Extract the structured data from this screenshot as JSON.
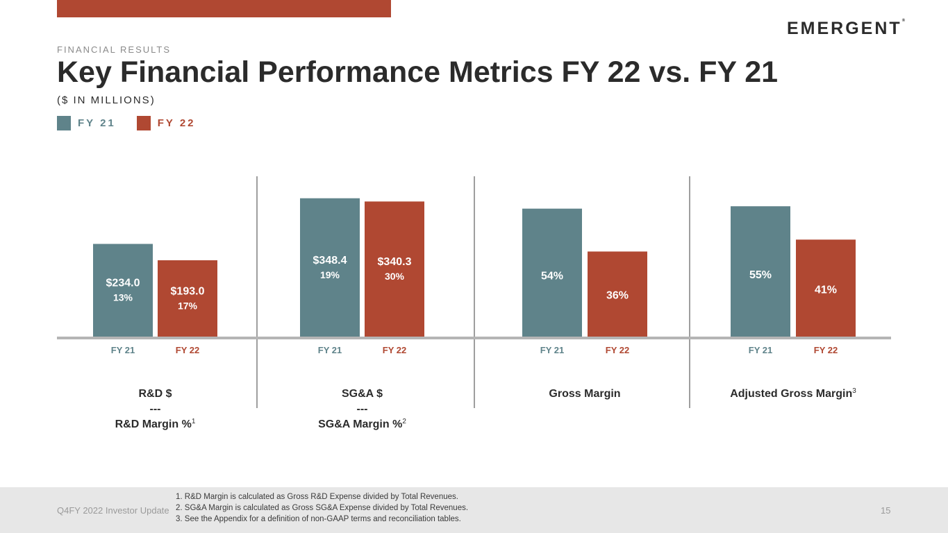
{
  "header": {
    "logo": "EMERGENT",
    "logo_mark": "®",
    "eyebrow": "FINANCIAL RESULTS",
    "title": "Key Financial Performance Metrics FY 22 vs. FY 21",
    "subtitle": "($ IN MILLIONS)"
  },
  "colors": {
    "fy21": "#5f838a",
    "fy22": "#b04832",
    "accent_bar": "#b04832",
    "axis": "#b5b5b5",
    "divider": "#9e9e9e"
  },
  "legend": [
    {
      "label": "FY 21",
      "color": "#5f838a"
    },
    {
      "label": "FY 22",
      "color": "#b04832"
    }
  ],
  "chart_data": {
    "type": "bar",
    "series_names": [
      "FY 21",
      "FY 22"
    ],
    "groups": [
      {
        "id": "rd",
        "label": [
          "R&D $",
          "---",
          "R&D Margin %"
        ],
        "sup": "1",
        "categories": [
          "FY 21",
          "FY 22"
        ],
        "values": [
          234.0,
          193.0
        ],
        "value_labels": [
          "$234.0",
          "$193.0"
        ],
        "sub_labels": [
          "13%",
          "17%"
        ],
        "ymax": 400
      },
      {
        "id": "sga",
        "label": [
          "SG&A $",
          "---",
          "SG&A Margin %"
        ],
        "sup": "2",
        "categories": [
          "FY 21",
          "FY 22"
        ],
        "values": [
          348.4,
          340.3
        ],
        "value_labels": [
          "$348.4",
          "$340.3"
        ],
        "sub_labels": [
          "19%",
          "30%"
        ],
        "ymax": 400
      },
      {
        "id": "gm",
        "label": [
          "Gross Margin"
        ],
        "sup": "",
        "categories": [
          "FY 21",
          "FY 22"
        ],
        "values": [
          54,
          36
        ],
        "value_labels": [
          "54%",
          "36%"
        ],
        "sub_labels": [
          "",
          ""
        ],
        "ymax": 67
      },
      {
        "id": "agm",
        "label": [
          "Adjusted Gross Margin"
        ],
        "sup": "3",
        "categories": [
          "FY 21",
          "FY 22"
        ],
        "values": [
          55,
          41
        ],
        "value_labels": [
          "55%",
          "41%"
        ],
        "sub_labels": [
          "",
          ""
        ],
        "ymax": 67
      }
    ]
  },
  "footer": {
    "left": "Q4FY 2022 Investor Update",
    "notes": [
      "1. R&D Margin is calculated as Gross R&D Expense divided by Total Revenues.",
      "2. SG&A Margin is calculated as Gross SG&A Expense divided by Total Revenues.",
      "3. See the Appendix for a definition of non-GAAP terms and reconciliation tables."
    ],
    "page": "15"
  }
}
